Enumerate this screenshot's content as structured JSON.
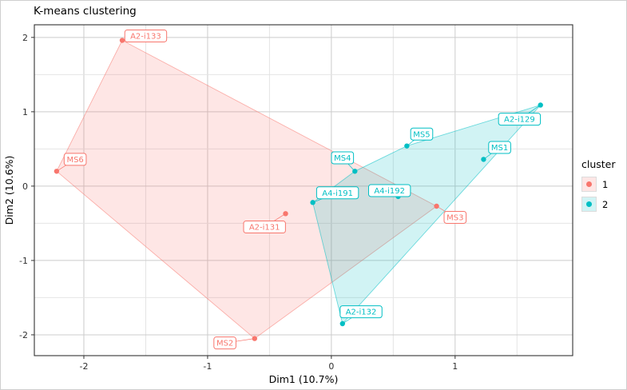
{
  "legend": {
    "title": "cluster",
    "entries": [
      {
        "label": "1",
        "color": "#F8766D"
      },
      {
        "label": "2",
        "color": "#00BFC4"
      }
    ]
  },
  "chart_data": {
    "type": "scatter",
    "title": "K-means clustering",
    "xlabel": "Dim1 (10.7%)",
    "ylabel": "Dim2 (10.6%)",
    "xlim": [
      -2.4,
      1.95
    ],
    "ylim": [
      -2.28,
      2.17
    ],
    "xticks": [
      -2,
      -1,
      0,
      1
    ],
    "yticks": [
      -2,
      -1,
      0,
      1,
      2
    ],
    "minor_step": 0.5,
    "grid": "major+minor",
    "legend_position": "right",
    "clusters": [
      {
        "name": "1",
        "color": "#F8766D",
        "points": [
          {
            "label": "A2-i133",
            "x": -1.69,
            "y": 1.96,
            "lx": -1.5,
            "ly": 2.02
          },
          {
            "label": "MS6",
            "x": -2.22,
            "y": 0.2,
            "lx": -2.07,
            "ly": 0.36
          },
          {
            "label": "A2-i131",
            "x": -0.37,
            "y": -0.37,
            "lx": -0.54,
            "ly": -0.55
          },
          {
            "label": "MS2",
            "x": -0.62,
            "y": -2.05,
            "lx": -0.86,
            "ly": -2.11
          },
          {
            "label": "MS3",
            "x": 0.85,
            "y": -0.27,
            "lx": 1.0,
            "ly": -0.42
          }
        ],
        "hull": [
          [
            -1.69,
            1.96
          ],
          [
            0.85,
            -0.27
          ],
          [
            -0.62,
            -2.05
          ],
          [
            -2.22,
            0.2
          ]
        ]
      },
      {
        "name": "2",
        "color": "#00BFC4",
        "points": [
          {
            "label": "MS4",
            "x": 0.19,
            "y": 0.2,
            "lx": 0.09,
            "ly": 0.38
          },
          {
            "label": "A4-i191",
            "x": -0.15,
            "y": -0.22,
            "lx": 0.05,
            "ly": -0.09
          },
          {
            "label": "A4-i192",
            "x": 0.54,
            "y": -0.14,
            "lx": 0.47,
            "ly": -0.06
          },
          {
            "label": "MS5",
            "x": 0.61,
            "y": 0.54,
            "lx": 0.73,
            "ly": 0.7
          },
          {
            "label": "MS1",
            "x": 1.23,
            "y": 0.36,
            "lx": 1.36,
            "ly": 0.52
          },
          {
            "label": "A2-i129",
            "x": 1.69,
            "y": 1.09,
            "lx": 1.52,
            "ly": 0.9
          },
          {
            "label": "A2-i132",
            "x": 0.09,
            "y": -1.85,
            "lx": 0.24,
            "ly": -1.69
          }
        ],
        "hull": [
          [
            -0.15,
            -0.22
          ],
          [
            0.19,
            0.2
          ],
          [
            0.61,
            0.54
          ],
          [
            1.69,
            1.09
          ],
          [
            0.09,
            -1.85
          ]
        ]
      }
    ]
  }
}
